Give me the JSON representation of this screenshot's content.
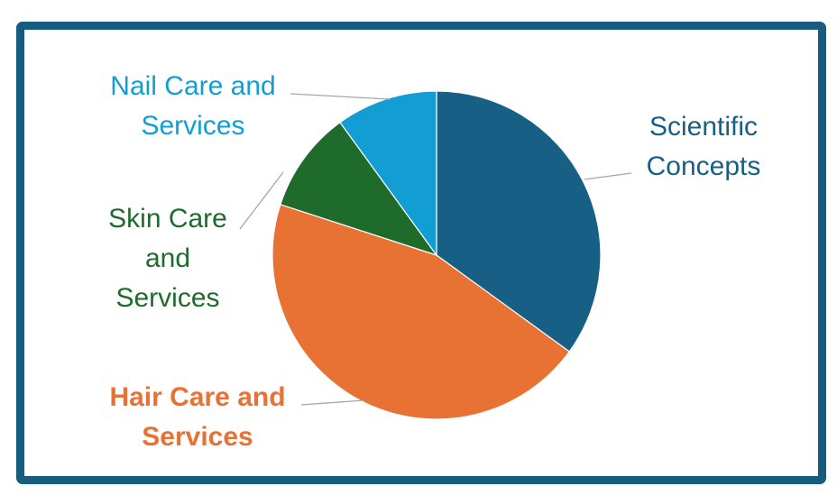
{
  "chart_data": {
    "type": "pie",
    "title": "",
    "start_angle_deg": 0,
    "direction": "clockwise",
    "legend": "none",
    "slices": [
      {
        "label_lines": [
          "Scientific",
          "Concepts"
        ],
        "value": 35,
        "color": "#175f84",
        "bold": false
      },
      {
        "label_lines": [
          "Hair Care and",
          "Services"
        ],
        "value": 45,
        "color": "#e87134",
        "bold": true
      },
      {
        "label_lines": [
          "Skin Care",
          "and",
          "Services"
        ],
        "value": 10,
        "color": "#1e6b2c",
        "bold": false
      },
      {
        "label_lines": [
          "Nail Care and",
          "Services"
        ],
        "value": 10,
        "color": "#129ed5",
        "bold": false
      }
    ]
  }
}
